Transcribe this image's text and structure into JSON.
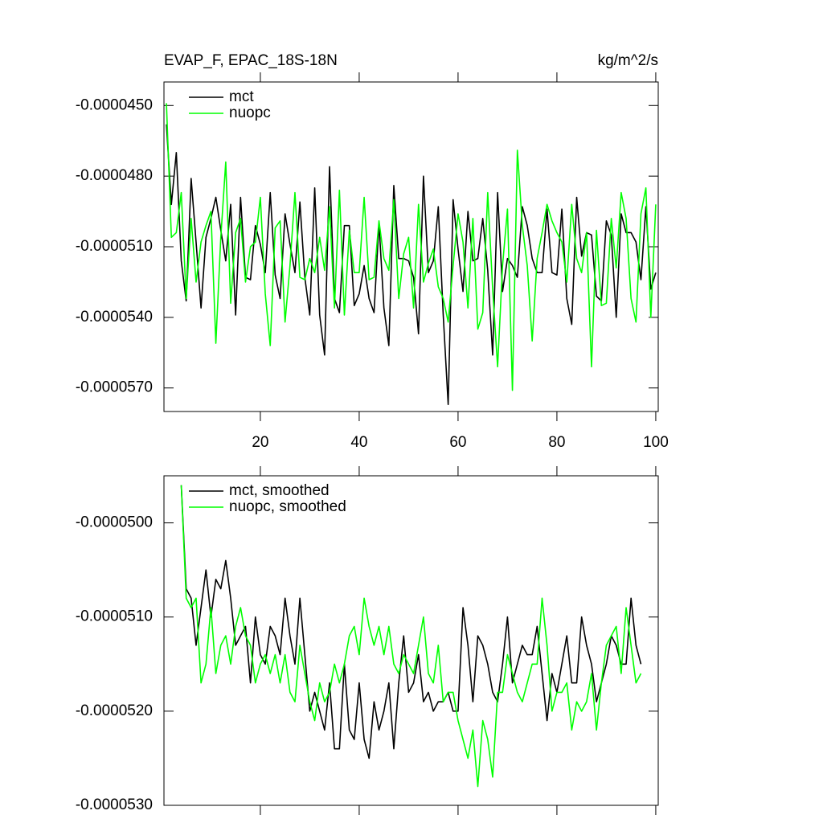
{
  "chart_data": [
    {
      "type": "line",
      "title": "EVAP_F, EPAC_18S-18N",
      "units": "kg/m^2/s",
      "legend": "top-left",
      "xlim": [
        0.5,
        100.5
      ],
      "xticks": [
        20,
        40,
        60,
        80,
        100
      ],
      "show_xtick_labels": true,
      "ylim": [
        -5.8e-05,
        -4.4e-05
      ],
      "yticks": [
        {
          "value": -4.5e-05,
          "label": "-0.0000450"
        },
        {
          "value": -4.8e-05,
          "label": "-0.0000480"
        },
        {
          "value": -5.1e-05,
          "label": "-0.0000510"
        },
        {
          "value": -5.4e-05,
          "label": "-0.0000540"
        },
        {
          "value": -5.7e-05,
          "label": "-0.0000570"
        }
      ],
      "x": [
        1,
        2,
        3,
        4,
        5,
        6,
        7,
        8,
        9,
        10,
        11,
        12,
        13,
        14,
        15,
        16,
        17,
        18,
        19,
        20,
        21,
        22,
        23,
        24,
        25,
        26,
        27,
        28,
        29,
        30,
        31,
        32,
        33,
        34,
        35,
        36,
        37,
        38,
        39,
        40,
        41,
        42,
        43,
        44,
        45,
        46,
        47,
        48,
        49,
        50,
        51,
        52,
        53,
        54,
        55,
        56,
        57,
        58,
        59,
        60,
        61,
        62,
        63,
        64,
        65,
        66,
        67,
        68,
        69,
        70,
        71,
        72,
        73,
        74,
        75,
        76,
        77,
        78,
        79,
        80,
        81,
        82,
        83,
        84,
        85,
        86,
        87,
        88,
        89,
        90,
        91,
        92,
        93,
        94,
        95,
        96,
        97,
        98,
        99,
        100
      ],
      "series": [
        {
          "name": "mct",
          "color": "#000000",
          "values": [
            -4.58e-05,
            -4.92e-05,
            -4.7e-05,
            -5.16e-05,
            -5.33e-05,
            -4.81e-05,
            -5.08e-05,
            -5.36e-05,
            -5.06e-05,
            -4.98e-05,
            -4.89e-05,
            -5.03e-05,
            -5.16e-05,
            -4.92e-05,
            -5.39e-05,
            -4.89e-05,
            -5.23e-05,
            -5.24e-05,
            -5.01e-05,
            -5.09e-05,
            -5.21e-05,
            -4.87e-05,
            -5.22e-05,
            -5.32e-05,
            -4.96e-05,
            -5.09e-05,
            -5.21e-05,
            -4.91e-05,
            -5.23e-05,
            -5.39e-05,
            -4.85e-05,
            -5.39e-05,
            -5.56e-05,
            -4.76e-05,
            -5.32e-05,
            -5.38e-05,
            -5.01e-05,
            -5.01e-05,
            -5.35e-05,
            -5.3e-05,
            -5.18e-05,
            -5.32e-05,
            -5.38e-05,
            -5e-05,
            -5.36e-05,
            -5.52e-05,
            -4.84e-05,
            -5.15e-05,
            -5.15e-05,
            -5.16e-05,
            -5.23e-05,
            -5.47e-05,
            -4.8e-05,
            -5.21e-05,
            -5.16e-05,
            -4.93e-05,
            -5.39e-05,
            -5.77e-05,
            -4.9e-05,
            -5.11e-05,
            -5.29e-05,
            -4.95e-05,
            -5.16e-05,
            -5.15e-05,
            -4.98e-05,
            -5.2e-05,
            -5.56e-05,
            -4.87e-05,
            -5.29e-05,
            -5.15e-05,
            -5.18e-05,
            -5.23e-05,
            -4.93e-05,
            -5.01e-05,
            -5.15e-05,
            -5.21e-05,
            -5.21e-05,
            -4.94e-05,
            -5.21e-05,
            -5.22e-05,
            -4.94e-05,
            -5.32e-05,
            -5.43e-05,
            -4.89e-05,
            -5.14e-05,
            -5.04e-05,
            -5.05e-05,
            -5.31e-05,
            -5.33e-05,
            -4.99e-05,
            -5.05e-05,
            -5.4e-05,
            -4.96e-05,
            -5.04e-05,
            -5.04e-05,
            -5.08e-05,
            -5.24e-05,
            -4.93e-05,
            -5.28e-05,
            -5.21e-05
          ]
        },
        {
          "name": "nuopc",
          "color": "#00ff00",
          "values": [
            -4.49e-05,
            -5.06e-05,
            -5.04e-05,
            -4.87e-05,
            -5.32e-05,
            -4.98e-05,
            -5.25e-05,
            -5.08e-05,
            -5.01e-05,
            -4.95e-05,
            -5.51e-05,
            -5.06e-05,
            -4.74e-05,
            -5.34e-05,
            -5.04e-05,
            -4.98e-05,
            -5.25e-05,
            -5.1e-05,
            -5.08e-05,
            -4.89e-05,
            -5.3e-05,
            -5.52e-05,
            -5.02e-05,
            -4.99e-05,
            -5.42e-05,
            -5.18e-05,
            -4.87e-05,
            -5.23e-05,
            -5.24e-05,
            -5.15e-05,
            -5.21e-05,
            -5.06e-05,
            -5.2e-05,
            -4.93e-05,
            -5.36e-05,
            -4.86e-05,
            -5.39e-05,
            -5.03e-05,
            -5.21e-05,
            -5.21e-05,
            -4.89e-05,
            -5.24e-05,
            -5.23e-05,
            -4.99e-05,
            -5.15e-05,
            -5.2e-05,
            -4.9e-05,
            -5.32e-05,
            -5.13e-05,
            -5.06e-05,
            -5.36e-05,
            -4.92e-05,
            -5.25e-05,
            -5.17e-05,
            -5.11e-05,
            -5.27e-05,
            -5.32e-05,
            -5.42e-05,
            -5.18e-05,
            -4.96e-05,
            -5.08e-05,
            -5.36e-05,
            -4.98e-05,
            -5.45e-05,
            -5.38e-05,
            -4.87e-05,
            -5.28e-05,
            -5.61e-05,
            -5.18e-05,
            -4.94e-05,
            -5.71e-05,
            -4.69e-05,
            -5.01e-05,
            -5.18e-05,
            -5.5e-05,
            -5.15e-05,
            -5.04e-05,
            -4.92e-05,
            -4.99e-05,
            -5.04e-05,
            -5.08e-05,
            -5.25e-05,
            -4.92e-05,
            -5.15e-05,
            -5.21e-05,
            -5.04e-05,
            -5.61e-05,
            -5.03e-05,
            -5.35e-05,
            -5.34e-05,
            -4.98e-05,
            -5.19e-05,
            -4.87e-05,
            -4.98e-05,
            -5.32e-05,
            -5.42e-05,
            -4.96e-05,
            -4.85e-05,
            -5.4e-05,
            -4.92e-05
          ]
        }
      ]
    },
    {
      "type": "line",
      "legend": "top-left",
      "xlim": [
        0.5,
        100.5
      ],
      "xticks": [
        20,
        40,
        60,
        80,
        100
      ],
      "show_xtick_labels": false,
      "ylim": [
        -5.3e-05,
        -4.95e-05
      ],
      "yticks": [
        {
          "value": -5e-05,
          "label": "-0.0000500"
        },
        {
          "value": -5.1e-05,
          "label": "-0.0000510"
        },
        {
          "value": -5.2e-05,
          "label": "-0.0000520"
        },
        {
          "value": -5.3e-05,
          "label": "-0.0000530"
        }
      ],
      "x": [
        4,
        5,
        6,
        7,
        8,
        9,
        10,
        11,
        12,
        13,
        14,
        15,
        16,
        17,
        18,
        19,
        20,
        21,
        22,
        23,
        24,
        25,
        26,
        27,
        28,
        29,
        30,
        31,
        32,
        33,
        34,
        35,
        36,
        37,
        38,
        39,
        40,
        41,
        42,
        43,
        44,
        45,
        46,
        47,
        48,
        49,
        50,
        51,
        52,
        53,
        54,
        55,
        56,
        57,
        58,
        59,
        60,
        61,
        62,
        63,
        64,
        65,
        66,
        67,
        68,
        69,
        70,
        71,
        72,
        73,
        74,
        75,
        76,
        77,
        78,
        79,
        80,
        81,
        82,
        83,
        84,
        85,
        86,
        87,
        88,
        89,
        90,
        91,
        92,
        93,
        94,
        95,
        96,
        97
      ],
      "series": [
        {
          "name": "mct, smoothed",
          "color": "#000000",
          "values": [
            -4.96e-05,
            -5.07e-05,
            -5.08e-05,
            -5.13e-05,
            -5.09e-05,
            -5.05e-05,
            -5.1e-05,
            -5.06e-05,
            -5.07e-05,
            -5.04e-05,
            -5.08e-05,
            -5.13e-05,
            -5.12e-05,
            -5.11e-05,
            -5.17e-05,
            -5.1e-05,
            -5.14e-05,
            -5.15e-05,
            -5.11e-05,
            -5.12e-05,
            -5.14e-05,
            -5.08e-05,
            -5.12e-05,
            -5.15e-05,
            -5.08e-05,
            -5.14e-05,
            -5.2e-05,
            -5.18e-05,
            -5.2e-05,
            -5.22e-05,
            -5.17e-05,
            -5.24e-05,
            -5.24e-05,
            -5.15e-05,
            -5.22e-05,
            -5.23e-05,
            -5.17e-05,
            -5.23e-05,
            -5.25e-05,
            -5.19e-05,
            -5.22e-05,
            -5.2e-05,
            -5.17e-05,
            -5.24e-05,
            -5.17e-05,
            -5.12e-05,
            -5.18e-05,
            -5.17e-05,
            -5.14e-05,
            -5.19e-05,
            -5.18e-05,
            -5.2e-05,
            -5.19e-05,
            -5.19e-05,
            -5.18e-05,
            -5.2e-05,
            -5.2e-05,
            -5.09e-05,
            -5.13e-05,
            -5.19e-05,
            -5.12e-05,
            -5.13e-05,
            -5.15e-05,
            -5.18e-05,
            -5.19e-05,
            -5.15e-05,
            -5.1e-05,
            -5.17e-05,
            -5.15e-05,
            -5.13e-05,
            -5.14e-05,
            -5.14e-05,
            -5.11e-05,
            -5.16e-05,
            -5.21e-05,
            -5.16e-05,
            -5.18e-05,
            -5.15e-05,
            -5.12e-05,
            -5.17e-05,
            -5.17e-05,
            -5.1e-05,
            -5.13e-05,
            -5.15e-05,
            -5.19e-05,
            -5.17e-05,
            -5.15e-05,
            -5.12e-05,
            -5.13e-05,
            -5.15e-05,
            -5.15e-05,
            -5.08e-05,
            -5.13e-05,
            -5.15e-05
          ]
        },
        {
          "name": "nuopc, smoothed",
          "color": "#00ff00",
          "values": [
            -4.96e-05,
            -5.08e-05,
            -5.09e-05,
            -5.08e-05,
            -5.17e-05,
            -5.15e-05,
            -5.09e-05,
            -5.16e-05,
            -5.13e-05,
            -5.12e-05,
            -5.15e-05,
            -5.11e-05,
            -5.09e-05,
            -5.12e-05,
            -5.13e-05,
            -5.17e-05,
            -5.15e-05,
            -5.14e-05,
            -5.16e-05,
            -5.14e-05,
            -5.17e-05,
            -5.14e-05,
            -5.18e-05,
            -5.19e-05,
            -5.13e-05,
            -5.16e-05,
            -5.19e-05,
            -5.21e-05,
            -5.17e-05,
            -5.19e-05,
            -5.18e-05,
            -5.15e-05,
            -5.17e-05,
            -5.15e-05,
            -5.12e-05,
            -5.11e-05,
            -5.14e-05,
            -5.08e-05,
            -5.11e-05,
            -5.13e-05,
            -5.11e-05,
            -5.14e-05,
            -5.11e-05,
            -5.15e-05,
            -5.16e-05,
            -5.14e-05,
            -5.15e-05,
            -5.16e-05,
            -5.13e-05,
            -5.1e-05,
            -5.16e-05,
            -5.17e-05,
            -5.13e-05,
            -5.19e-05,
            -5.18e-05,
            -5.18e-05,
            -5.21e-05,
            -5.23e-05,
            -5.25e-05,
            -5.22e-05,
            -5.28e-05,
            -5.21e-05,
            -5.23e-05,
            -5.27e-05,
            -5.18e-05,
            -5.18e-05,
            -5.14e-05,
            -5.16e-05,
            -5.18e-05,
            -5.19e-05,
            -5.17e-05,
            -5.15e-05,
            -5.15e-05,
            -5.08e-05,
            -5.13e-05,
            -5.2e-05,
            -5.18e-05,
            -5.18e-05,
            -5.17e-05,
            -5.22e-05,
            -5.19e-05,
            -5.2e-05,
            -5.19e-05,
            -5.16e-05,
            -5.22e-05,
            -5.17e-05,
            -5.13e-05,
            -5.12e-05,
            -5.11e-05,
            -5.16e-05,
            -5.09e-05,
            -5.13e-05,
            -5.17e-05,
            -5.16e-05
          ]
        }
      ]
    }
  ]
}
